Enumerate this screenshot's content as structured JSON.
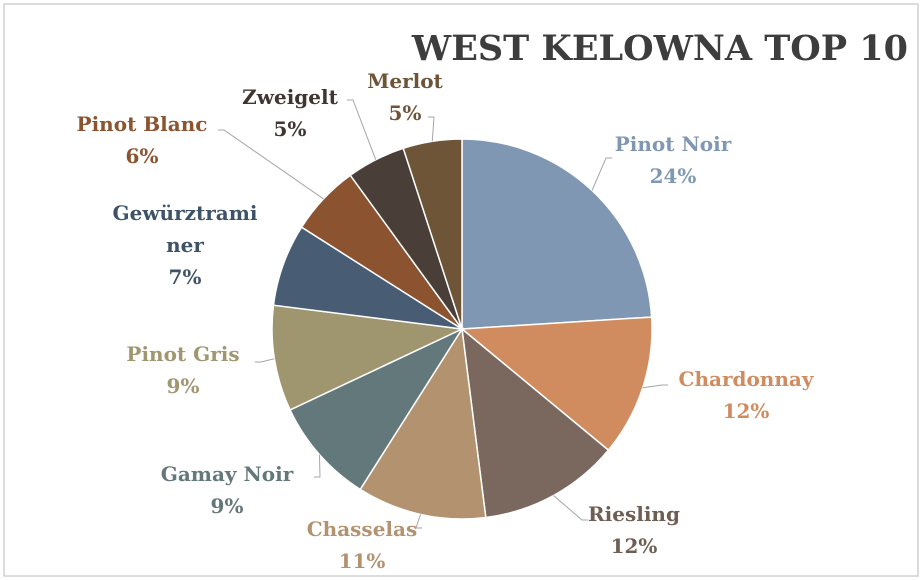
{
  "chart_data": {
    "type": "pie",
    "title": "WEST KELOWNA TOP 10",
    "categories": [
      "Pinot Noir",
      "Chardonnay",
      "Riesling",
      "Chasselas",
      "Gamay Noir",
      "Pinot Gris",
      "Gewürztraminer",
      "Pinot Blanc",
      "Zweigelt",
      "Merlot"
    ],
    "values": [
      24,
      12,
      12,
      11,
      9,
      9,
      7,
      6,
      5,
      5
    ],
    "value_labels": [
      "24%",
      "12%",
      "12%",
      "11%",
      "9%",
      "9%",
      "7%",
      "6%",
      "5%",
      "5%"
    ],
    "colors": [
      "#7f97b2",
      "#d08b5e",
      "#7a685e",
      "#b39270",
      "#63787a",
      "#9f956f",
      "#485c73",
      "#8b5330",
      "#4a3e38",
      "#6e5538"
    ]
  }
}
